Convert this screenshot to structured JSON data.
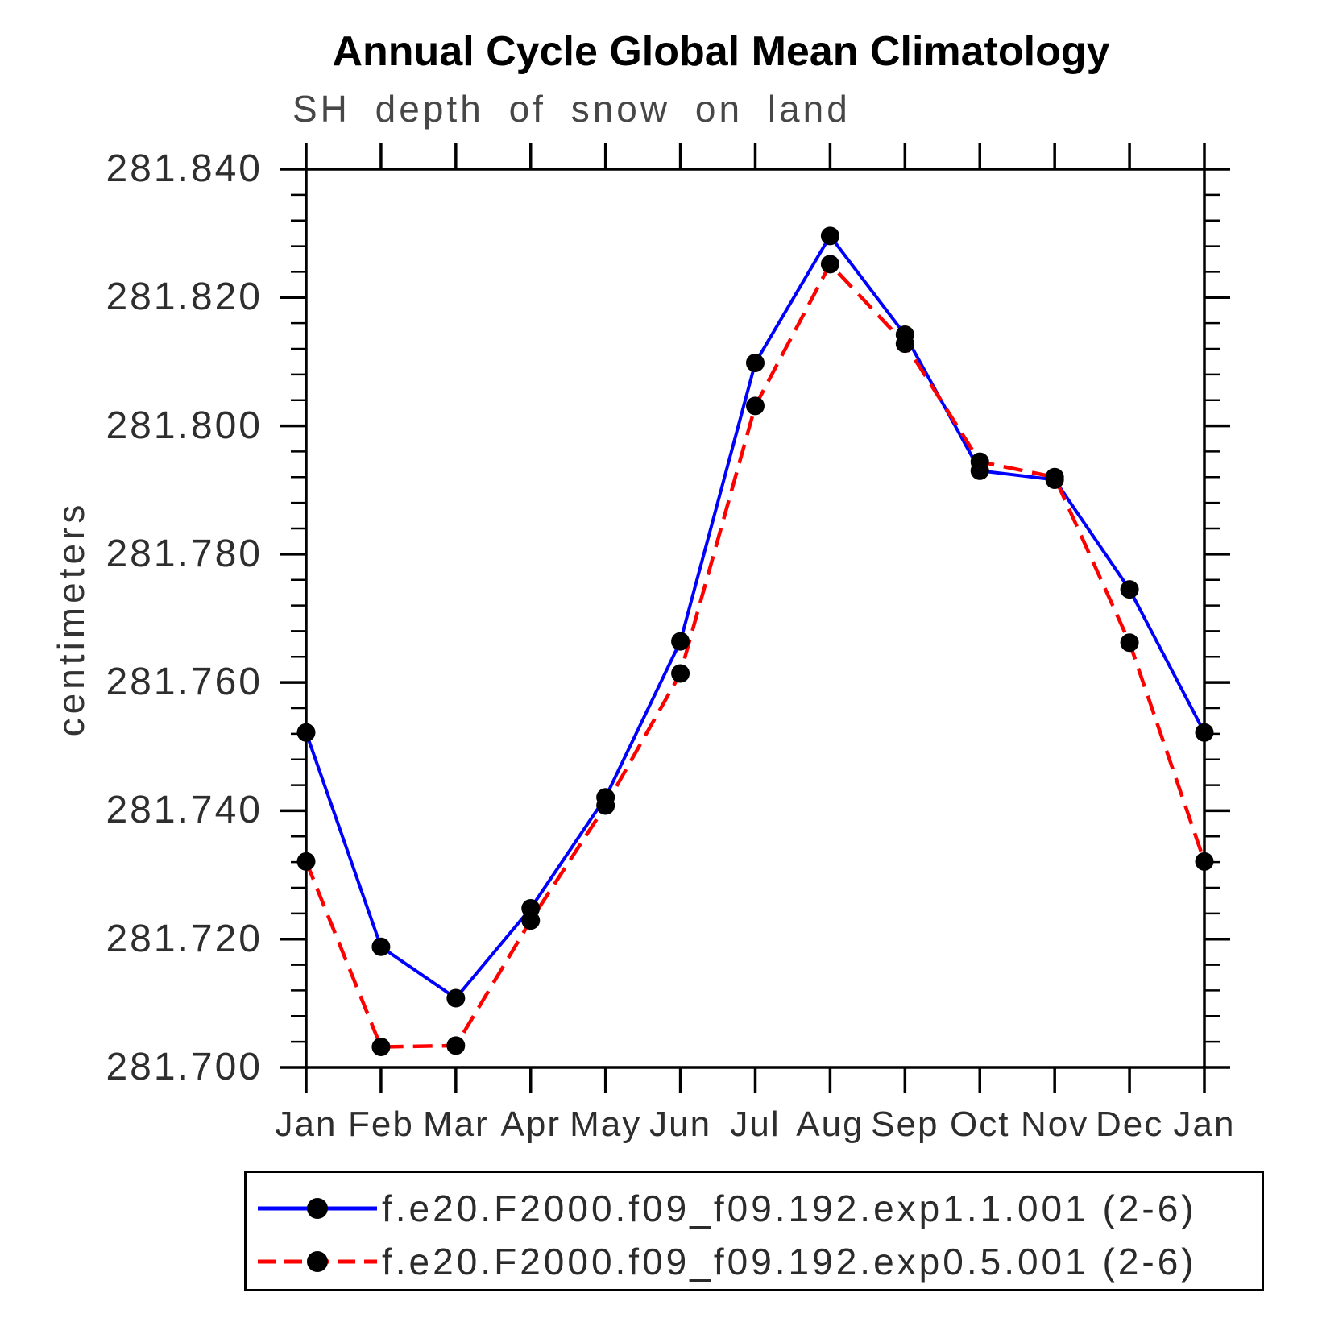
{
  "page": {
    "background": "#ffffff"
  },
  "chart_data": {
    "type": "line",
    "title": "Annual Cycle Global Mean Climatology",
    "subtitle": "SH depth of snow on land",
    "ylabel": "centimeters",
    "xlabel": "",
    "categories": [
      "Jan",
      "Feb",
      "Mar",
      "Apr",
      "May",
      "Jun",
      "Jul",
      "Aug",
      "Sep",
      "Oct",
      "Nov",
      "Dec",
      "Jan"
    ],
    "ylim": [
      281.7,
      281.84
    ],
    "ytick_step": 0.02,
    "minor_ticks_per_major_interval": 4,
    "ytick_labels": [
      "281.700",
      "281.720",
      "281.740",
      "281.760",
      "281.780",
      "281.800",
      "281.820",
      "281.840"
    ],
    "grid": false,
    "legend_position": "bottom",
    "axis_color": "#000000",
    "marker_shape": "filled-circle",
    "series": [
      {
        "name": "f.e20.F2000.f09_f09.192.exp1.1.001 (2-6)",
        "color": "#0000ff",
        "line_style": "solid",
        "marker_color": "#000000",
        "values": [
          281.7522,
          281.7188,
          281.7108,
          281.7248,
          281.7421,
          281.7664,
          281.8098,
          281.8296,
          281.8142,
          281.793,
          281.7916,
          281.7745,
          281.7522
        ]
      },
      {
        "name": "f.e20.F2000.f09_f09.192.exp0.5.001 (2-6)",
        "color": "#ff0000",
        "line_style": "dashed",
        "marker_color": "#000000",
        "values": [
          281.7321,
          281.7032,
          281.7034,
          281.7229,
          281.7408,
          281.7614,
          281.8031,
          281.8252,
          281.8128,
          281.7944,
          281.792,
          281.7662,
          281.7321
        ]
      }
    ]
  }
}
